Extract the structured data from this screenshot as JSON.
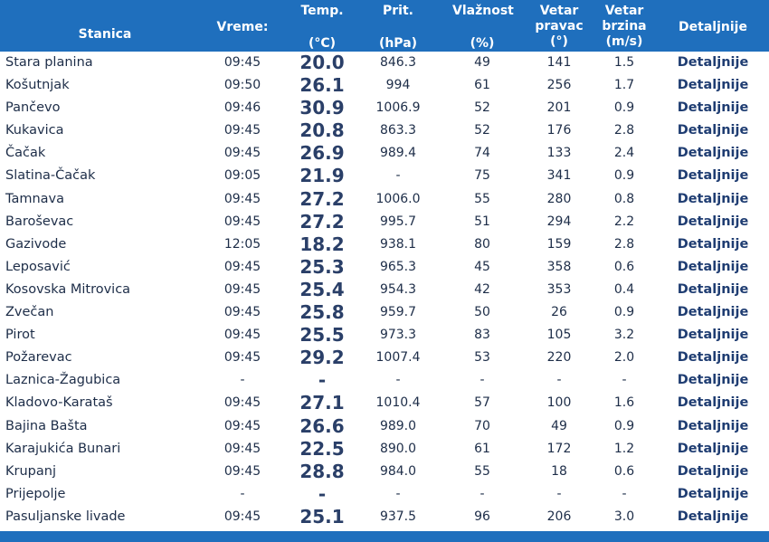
{
  "header": {
    "stanica": "Stanica",
    "vreme": "Vreme:",
    "temp": [
      "Temp.",
      "(°C)"
    ],
    "prit": [
      "Prit.",
      "(hPa)"
    ],
    "vlaznost": [
      "Vlažnost",
      "(%)"
    ],
    "vetar_pravac": [
      "Vetar",
      "pravac",
      "(°)"
    ],
    "vetar_brzina": [
      "Vetar",
      "brzina",
      "(m/s)"
    ],
    "detaljnije": "Detaljnije"
  },
  "rows": [
    {
      "stanica": "Stara planina",
      "vreme": "09:45",
      "temp": "20.0",
      "prit": "846.3",
      "vlaznost": "49",
      "pravac": "141",
      "brzina": "1.5",
      "link": "Detaljnije"
    },
    {
      "stanica": "Košutnjak",
      "vreme": "09:50",
      "temp": "26.1",
      "prit": "994",
      "vlaznost": "61",
      "pravac": "256",
      "brzina": "1.7",
      "link": "Detaljnije"
    },
    {
      "stanica": "Pančevo",
      "vreme": "09:46",
      "temp": "30.9",
      "prit": "1006.9",
      "vlaznost": "52",
      "pravac": "201",
      "brzina": "0.9",
      "link": "Detaljnije"
    },
    {
      "stanica": "Kukavica",
      "vreme": "09:45",
      "temp": "20.8",
      "prit": "863.3",
      "vlaznost": "52",
      "pravac": "176",
      "brzina": "2.8",
      "link": "Detaljnije"
    },
    {
      "stanica": "Čačak",
      "vreme": "09:45",
      "temp": "26.9",
      "prit": "989.4",
      "vlaznost": "74",
      "pravac": "133",
      "brzina": "2.4",
      "link": "Detaljnije"
    },
    {
      "stanica": "Slatina-Čačak",
      "vreme": "09:05",
      "temp": "21.9",
      "prit": "-",
      "vlaznost": "75",
      "pravac": "341",
      "brzina": "0.9",
      "link": "Detaljnije"
    },
    {
      "stanica": "Tamnava",
      "vreme": "09:45",
      "temp": "27.2",
      "prit": "1006.0",
      "vlaznost": "55",
      "pravac": "280",
      "brzina": "0.8",
      "link": "Detaljnije"
    },
    {
      "stanica": "Baroševac",
      "vreme": "09:45",
      "temp": "27.2",
      "prit": "995.7",
      "vlaznost": "51",
      "pravac": "294",
      "brzina": "2.2",
      "link": "Detaljnije"
    },
    {
      "stanica": "Gazivode",
      "vreme": "12:05",
      "temp": "18.2",
      "prit": "938.1",
      "vlaznost": "80",
      "pravac": "159",
      "brzina": "2.8",
      "link": "Detaljnije"
    },
    {
      "stanica": "Leposavić",
      "vreme": "09:45",
      "temp": "25.3",
      "prit": "965.3",
      "vlaznost": "45",
      "pravac": "358",
      "brzina": "0.6",
      "link": "Detaljnije"
    },
    {
      "stanica": "Kosovska Mitrovica",
      "vreme": "09:45",
      "temp": "25.4",
      "prit": "954.3",
      "vlaznost": "42",
      "pravac": "353",
      "brzina": "0.4",
      "link": "Detaljnije"
    },
    {
      "stanica": "Zvečan",
      "vreme": "09:45",
      "temp": "25.8",
      "prit": "959.7",
      "vlaznost": "50",
      "pravac": "26",
      "brzina": "0.9",
      "link": "Detaljnije"
    },
    {
      "stanica": "Pirot",
      "vreme": "09:45",
      "temp": "25.5",
      "prit": "973.3",
      "vlaznost": "83",
      "pravac": "105",
      "brzina": "3.2",
      "link": "Detaljnije"
    },
    {
      "stanica": "Požarevac",
      "vreme": "09:45",
      "temp": "29.2",
      "prit": "1007.4",
      "vlaznost": "53",
      "pravac": "220",
      "brzina": "2.0",
      "link": "Detaljnije"
    },
    {
      "stanica": "Laznica-Žagubica",
      "vreme": "-",
      "temp": "-",
      "prit": "-",
      "vlaznost": "-",
      "pravac": "-",
      "brzina": "-",
      "link": "Detaljnije"
    },
    {
      "stanica": "Kladovo-Karataš",
      "vreme": "09:45",
      "temp": "27.1",
      "prit": "1010.4",
      "vlaznost": "57",
      "pravac": "100",
      "brzina": "1.6",
      "link": "Detaljnije"
    },
    {
      "stanica": "Bajina Bašta",
      "vreme": "09:45",
      "temp": "26.6",
      "prit": "989.0",
      "vlaznost": "70",
      "pravac": "49",
      "brzina": "0.9",
      "link": "Detaljnije"
    },
    {
      "stanica": "Karajukića Bunari",
      "vreme": "09:45",
      "temp": "22.5",
      "prit": "890.0",
      "vlaznost": "61",
      "pravac": "172",
      "brzina": "1.2",
      "link": "Detaljnije"
    },
    {
      "stanica": "Krupanj",
      "vreme": "09:45",
      "temp": "28.8",
      "prit": "984.0",
      "vlaznost": "55",
      "pravac": "18",
      "brzina": "0.6",
      "link": "Detaljnije"
    },
    {
      "stanica": "Prijepolje",
      "vreme": "-",
      "temp": "-",
      "prit": "-",
      "vlaznost": "-",
      "pravac": "-",
      "brzina": "-",
      "link": "Detaljnije"
    },
    {
      "stanica": "Pasuljanske livade",
      "vreme": "09:45",
      "temp": "25.1",
      "prit": "937.5",
      "vlaznost": "96",
      "pravac": "206",
      "brzina": "3.0",
      "link": "Detaljnije"
    }
  ],
  "colors": {
    "header_bg": "#1f6fbd",
    "header_text": "#ffffff",
    "link": "#1f3d72",
    "temp": "#2a3f68"
  }
}
